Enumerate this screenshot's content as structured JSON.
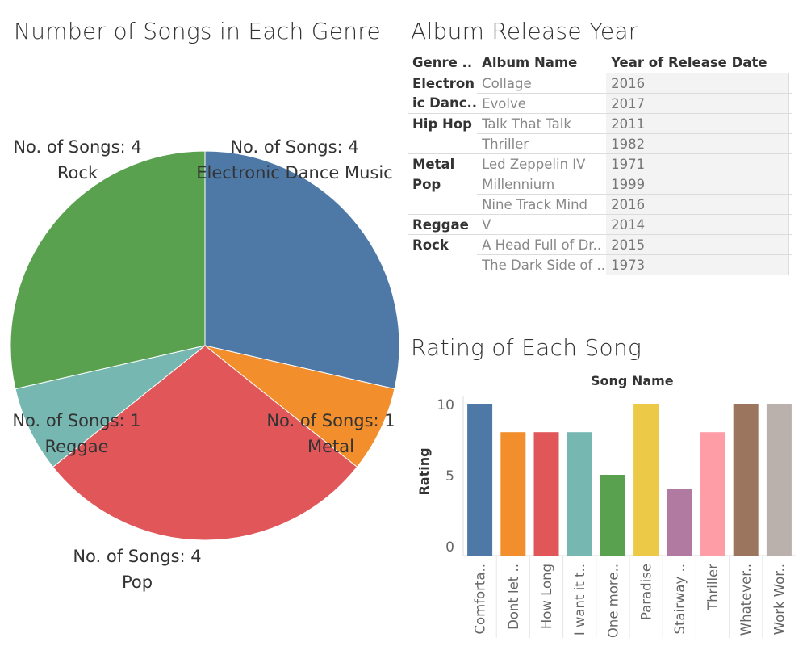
{
  "pie": {
    "title": "Number of Songs in Each Genre",
    "chart_data": {
      "type": "pie",
      "title": "Number of Songs in Each Genre",
      "label_prefix": "No. of Songs: ",
      "slices": [
        {
          "name": "Electronic Dance Music",
          "value": 4,
          "color": "#4e79a7"
        },
        {
          "name": "Metal",
          "value": 1,
          "color": "#f28e2b"
        },
        {
          "name": "Pop",
          "value": 4,
          "color": "#e15759"
        },
        {
          "name": "Reggae",
          "value": 1,
          "color": "#76b7b2"
        },
        {
          "name": "Rock",
          "value": 4,
          "color": "#59a14f"
        }
      ]
    }
  },
  "table": {
    "title": "Album Release Year",
    "headers": [
      "Genre ..",
      "Album Name",
      "Year of Release Date"
    ],
    "rows": [
      {
        "genre": "Electron",
        "album": "Collage",
        "year": "2016"
      },
      {
        "genre": "ic Danc..",
        "album": "Evolve",
        "year": "2017"
      },
      {
        "genre": "Hip Hop",
        "album": "Talk That Talk",
        "year": "2011"
      },
      {
        "genre": "",
        "album": "Thriller",
        "year": "1982"
      },
      {
        "genre": "Metal",
        "album": "Led Zeppelin IV",
        "year": "1971"
      },
      {
        "genre": "Pop",
        "album": "Millennium",
        "year": "1999"
      },
      {
        "genre": "",
        "album": "Nine Track Mind",
        "year": "2016"
      },
      {
        "genre": "Reggae",
        "album": "V",
        "year": "2014"
      },
      {
        "genre": "Rock",
        "album": "A Head Full of Dr..",
        "year": "2015"
      },
      {
        "genre": "",
        "album": "The Dark Side of ..",
        "year": "1973"
      }
    ]
  },
  "bar": {
    "title": "Rating of Each Song",
    "chart_data": {
      "type": "bar",
      "title": "Rating of Each Song",
      "column_header": "Song Name",
      "ylabel": "Rating",
      "ylim": [
        0,
        10
      ],
      "yticks": [
        0,
        5,
        10
      ],
      "categories": [
        "Comforta..",
        "Dont let ..",
        "How Long",
        "I want it t..",
        "One more..",
        "Paradise",
        "Stairway ..",
        "Thriller",
        "Whatever..",
        "Work Wor.."
      ],
      "values": [
        10,
        8,
        8,
        8,
        5,
        10,
        4,
        8,
        10,
        10
      ],
      "colors": [
        "#4e79a7",
        "#f28e2b",
        "#e15759",
        "#76b7b2",
        "#59a14f",
        "#edc948",
        "#b07aa1",
        "#ff9da7",
        "#9c755f",
        "#bab0ac"
      ]
    }
  }
}
